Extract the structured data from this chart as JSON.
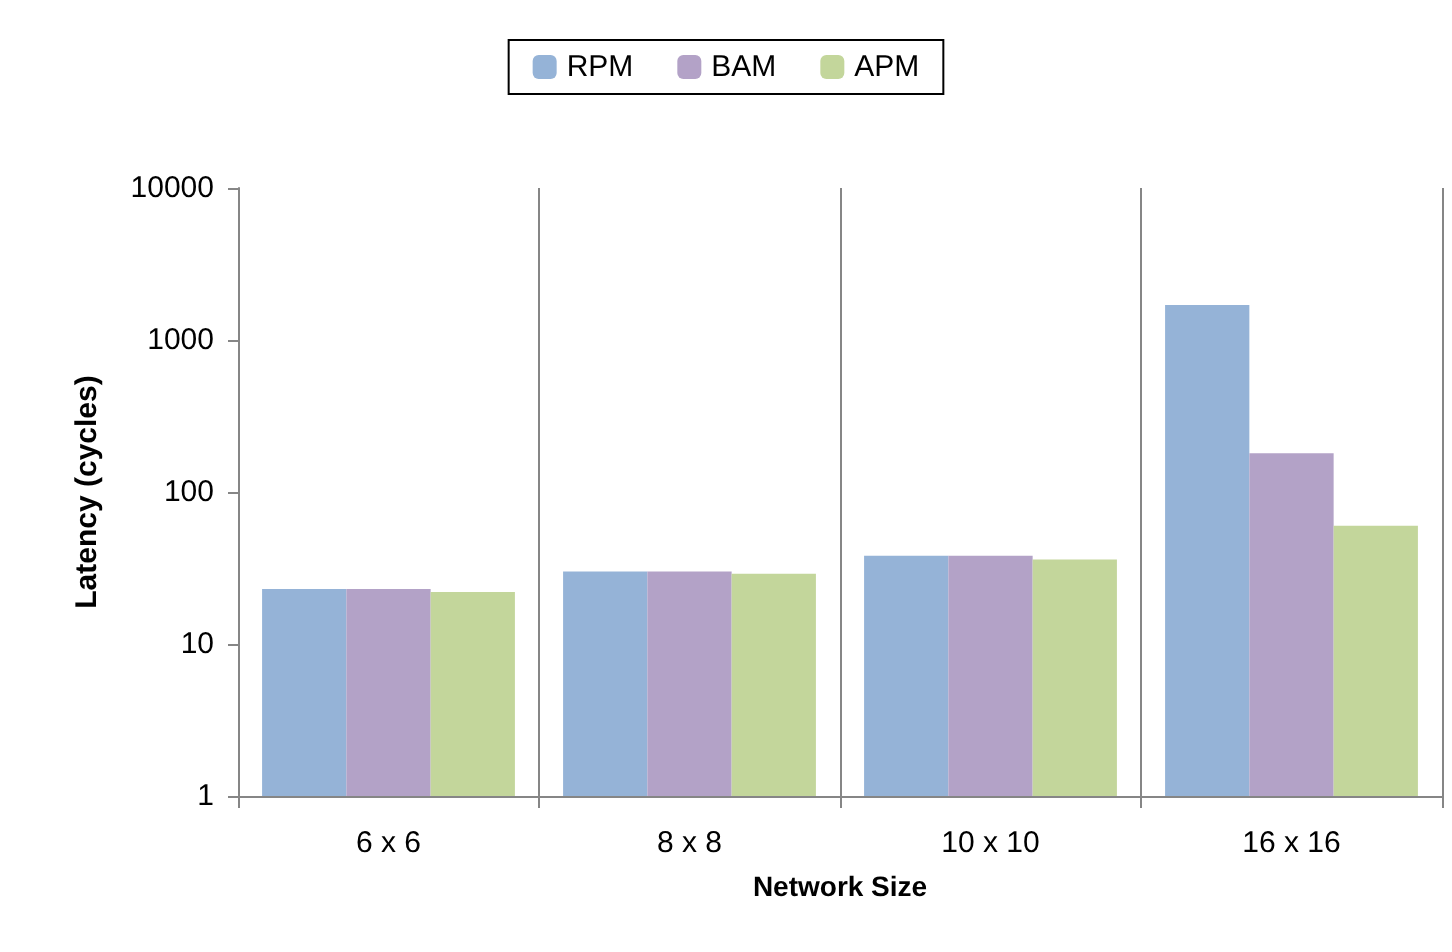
{
  "chart_data": {
    "type": "bar",
    "xlabel": "Network Size",
    "ylabel": "Latency (cycles)",
    "categories": [
      "6 x 6",
      "8 x 8",
      "10 x 10",
      "16 x 16"
    ],
    "series": [
      {
        "name": "RPM",
        "color": "#95b3d7",
        "values": [
          23,
          30,
          38,
          1700
        ]
      },
      {
        "name": "BAM",
        "color": "#b3a2c7",
        "values": [
          23,
          30,
          38,
          180
        ]
      },
      {
        "name": "APM",
        "color": "#c3d69b",
        "values": [
          22,
          29,
          36,
          60
        ]
      }
    ],
    "log": true,
    "ylim": [
      1,
      10000
    ],
    "yticks": [
      1,
      10,
      100,
      1000,
      10000
    ],
    "grid": "x",
    "legend": "top"
  }
}
